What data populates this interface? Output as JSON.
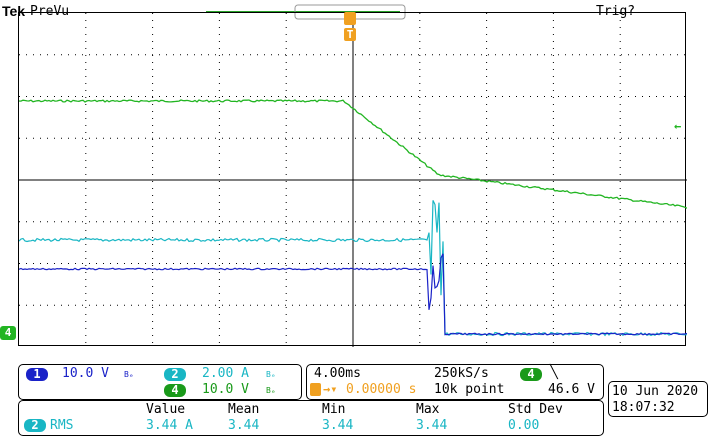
{
  "header": {
    "brand": "Tek",
    "mode": "PreVu",
    "trigger_status": "Trig?"
  },
  "markers": {
    "trigger_marker": "T",
    "trigger_level_marker": "←",
    "ch4_marker": "4"
  },
  "colors": {
    "ch1": "#1a22c8",
    "ch2": "#19b6c4",
    "ch4": "#22b522",
    "trigger": "#f0a020",
    "grid": "#000000"
  },
  "channels": {
    "ch1": {
      "num": "1",
      "scale": "10.0 V",
      "bw": "Bₑ"
    },
    "ch2": {
      "num": "2",
      "scale": "2.00 A",
      "bw": "Bₑ"
    },
    "ch4": {
      "num": "4",
      "scale": "10.0 V",
      "bw": "Bₑ"
    }
  },
  "timebase": {
    "horizontal_scale": "4.00ms",
    "sample_rate": "250kS/s",
    "trigger_delay": "0.00000 s",
    "record_length": "10k point",
    "trigger_source": "4",
    "trigger_slope_icon": "falling-edge-icon",
    "trigger_slope": "╲",
    "trigger_level": "46.6 V"
  },
  "datetime": {
    "date": "10 Jun  2020",
    "time": "18:07:32"
  },
  "measurements": {
    "headers": [
      "Value",
      "Mean",
      "Min",
      "Max",
      "Std Dev"
    ],
    "rows": [
      {
        "channel": "2",
        "type": "RMS",
        "value": "3.44 A",
        "mean": "3.44",
        "min": "3.44",
        "max": "3.44",
        "stddev": "0.00"
      }
    ]
  }
}
